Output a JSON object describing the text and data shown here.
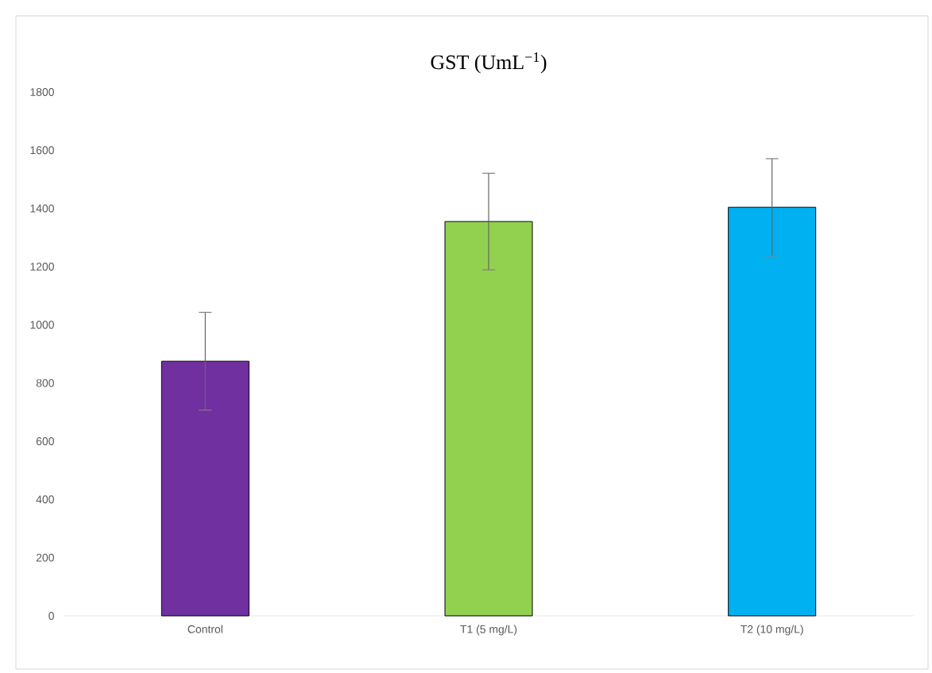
{
  "chart_data": {
    "type": "bar",
    "title": "GST (UmL$^{−1}$)",
    "categories": [
      "Control",
      "T1 (5 mg/L)",
      "T2 (10 mg/L)"
    ],
    "values": [
      875,
      1355,
      1404
    ],
    "errors": [
      168,
      166,
      167
    ],
    "colors": [
      "#7030a0",
      "#92d050",
      "#00b0f0"
    ],
    "ylim": [
      0,
      1800
    ],
    "yticks": [
      0,
      200,
      400,
      600,
      800,
      1000,
      1200,
      1400,
      1600,
      1800
    ],
    "grid": false
  }
}
